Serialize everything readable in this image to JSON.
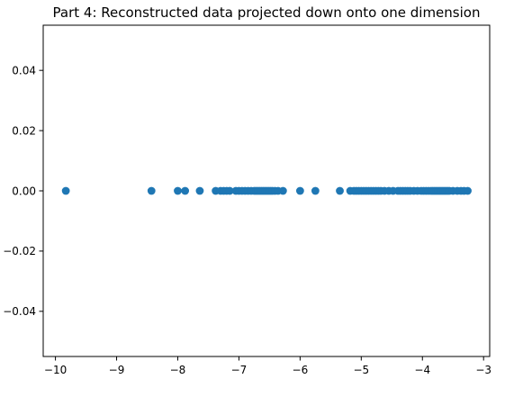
{
  "chart_data": {
    "type": "scatter",
    "title": "Part 4: Reconstructed data projected down onto one dimension",
    "xlabel": "",
    "ylabel": "",
    "xlim": [
      -10.2,
      -2.9
    ],
    "ylim": [
      -0.055,
      0.055
    ],
    "xticks": [
      -10,
      -9,
      -8,
      -7,
      -6,
      -5,
      -4,
      -3
    ],
    "xtick_labels": [
      "−10",
      "−9",
      "−8",
      "−7",
      "−6",
      "−5",
      "−4",
      "−3"
    ],
    "yticks": [
      -0.04,
      -0.02,
      0.0,
      0.02,
      0.04
    ],
    "ytick_labels": [
      "−0.04",
      "−0.02",
      "0.00",
      "0.02",
      "0.04"
    ],
    "grid": false,
    "legend": "none",
    "marker_color": "#1f77b4",
    "series": [
      {
        "x": [
          -9.83,
          -8.43,
          -8.0,
          -7.88,
          -7.64,
          -7.38,
          -7.3,
          -7.25,
          -7.2,
          -7.15,
          -7.05,
          -7.0,
          -6.95,
          -6.9,
          -6.85,
          -6.8,
          -6.75,
          -6.72,
          -6.69,
          -6.66,
          -6.63,
          -6.6,
          -6.57,
          -6.54,
          -6.51,
          -6.48,
          -6.45,
          -6.41,
          -6.36,
          -6.28,
          -6.0,
          -5.75,
          -5.35,
          -5.18,
          -5.12,
          -5.08,
          -5.04,
          -5.0,
          -4.96,
          -4.92,
          -4.88,
          -4.84,
          -4.8,
          -4.76,
          -4.72,
          -4.68,
          -4.62,
          -4.55,
          -4.48,
          -4.4,
          -4.36,
          -4.32,
          -4.28,
          -4.24,
          -4.2,
          -4.14,
          -4.08,
          -4.02,
          -3.98,
          -3.94,
          -3.9,
          -3.86,
          -3.83,
          -3.8,
          -3.77,
          -3.74,
          -3.71,
          -3.68,
          -3.65,
          -3.62,
          -3.59,
          -3.56,
          -3.5,
          -3.43,
          -3.37,
          -3.32,
          -3.26
        ],
        "y": [
          0,
          0,
          0,
          0,
          0,
          0,
          0,
          0,
          0,
          0,
          0,
          0,
          0,
          0,
          0,
          0,
          0,
          0,
          0,
          0,
          0,
          0,
          0,
          0,
          0,
          0,
          0,
          0,
          0,
          0,
          0,
          0,
          0,
          0,
          0,
          0,
          0,
          0,
          0,
          0,
          0,
          0,
          0,
          0,
          0,
          0,
          0,
          0,
          0,
          0,
          0,
          0,
          0,
          0,
          0,
          0,
          0,
          0,
          0,
          0,
          0,
          0,
          0,
          0,
          0,
          0,
          0,
          0,
          0,
          0,
          0,
          0,
          0,
          0,
          0,
          0,
          0
        ]
      }
    ]
  }
}
